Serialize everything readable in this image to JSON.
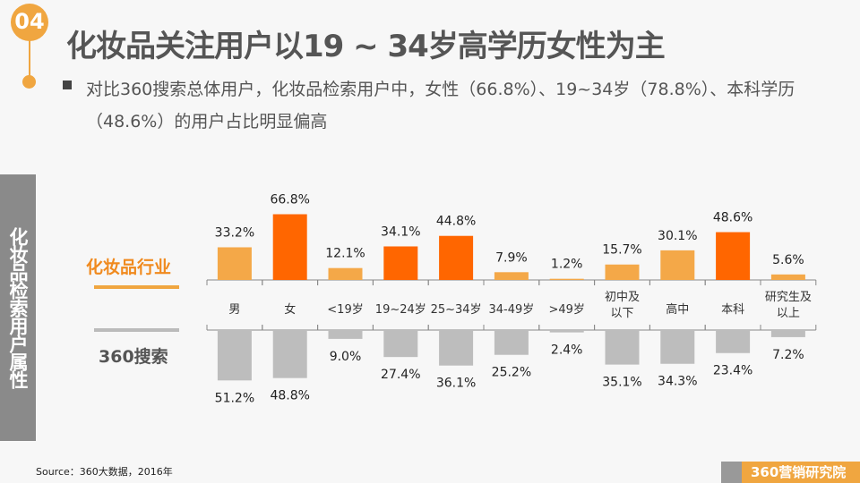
{
  "header": {
    "number": "04",
    "title": "化妆品关注用户以19 ~ 34岁高学历女性为主",
    "description": "对比360搜索总体用户，化妆品检索用户中，女性（66.8%）、19~34岁（78.8%）、本科学历（48.6%）的用户占比明显偏高"
  },
  "side_label": "化妆品检索用户属性",
  "source": "Source：360大数据，2016年",
  "logo": "360营销研究院",
  "colors": {
    "accent": "#f0a640",
    "highlight": "#ff6600",
    "normal": "#f4a848",
    "gray": "#bdbdbd"
  },
  "chart_data": {
    "type": "bar",
    "categories": [
      "男",
      "女",
      "<19岁",
      "19~24岁",
      "25~34岁",
      "34-49岁",
      ">49岁",
      "初中及\n以下",
      "高中",
      "本科",
      "研究生及\n以上"
    ],
    "series": [
      {
        "name": "化妆品行业",
        "values": [
          33.2,
          66.8,
          12.1,
          34.1,
          44.8,
          7.9,
          1.2,
          15.7,
          30.1,
          48.6,
          5.6
        ],
        "highlight": [
          false,
          true,
          false,
          true,
          true,
          false,
          false,
          false,
          false,
          true,
          false
        ]
      },
      {
        "name": "360搜索",
        "values": [
          51.2,
          48.8,
          9.0,
          27.4,
          36.1,
          25.2,
          2.4,
          35.1,
          34.3,
          23.4,
          7.2
        ]
      }
    ],
    "unit": "%"
  }
}
